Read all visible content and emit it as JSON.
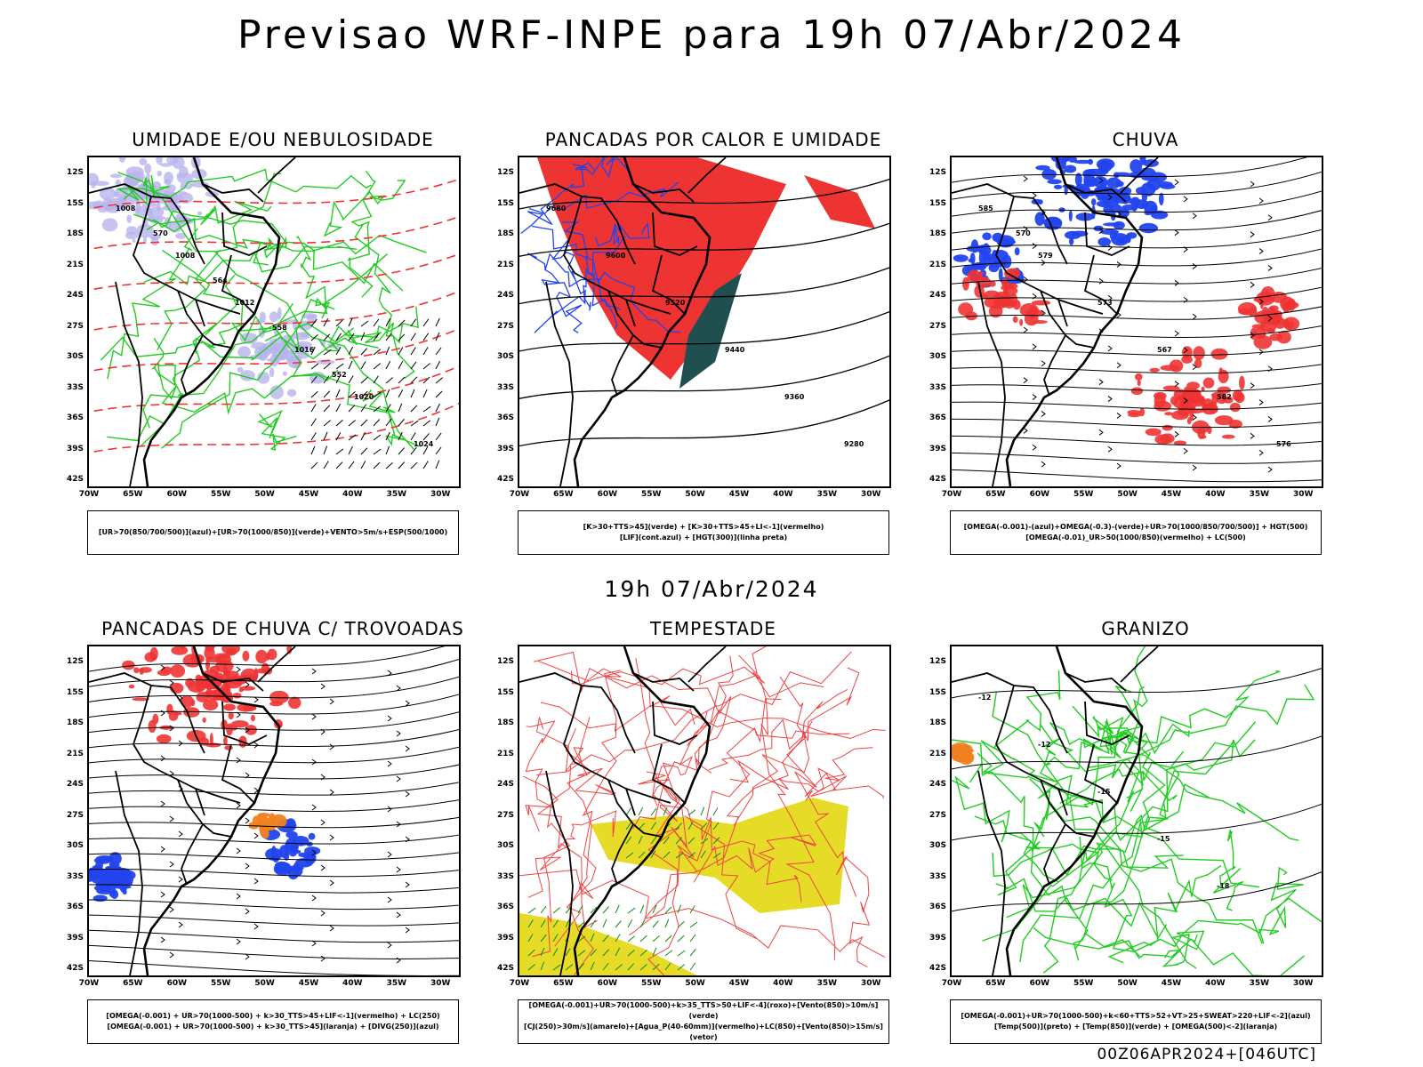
{
  "main_title": "Previsao WRF-INPE  para 19h 07/Abr/2024",
  "subtitle": "19h 07/Abr/2024",
  "footer": "00Z06APR2024+[046UTC]",
  "lat_labels": [
    "12S",
    "15S",
    "18S",
    "21S",
    "24S",
    "27S",
    "30S",
    "33S",
    "36S",
    "39S",
    "42S"
  ],
  "lon_labels": [
    "70W",
    "65W",
    "60W",
    "55W",
    "50W",
    "45W",
    "40W",
    "35W",
    "30W"
  ],
  "colors": {
    "green": "#22cc22",
    "blue": "#2244ee",
    "red": "#ee3333",
    "lavender": "#b8b4ee",
    "teal": "#1f4f4f",
    "yellow": "#e6dc28",
    "orange": "#f08020"
  },
  "panels": [
    {
      "title": "UMIDADE E/OU NEBULOSIDADE",
      "legend_line1": "[UR>70(850/700/500)](azul)+[UR>70(1000/850)](verde)+VENTO>5m/s+ESP(500/1000)",
      "legend_line2": "",
      "contour_labels": [
        "1008",
        "1008",
        "1012",
        "1016",
        "1020",
        "1024",
        "570",
        "564",
        "558",
        "552"
      ]
    },
    {
      "title": "PANCADAS POR CALOR E UMIDADE",
      "legend_line1": "[K>30+TTS>45](verde) + [K>30+TTS>45+LI<-1](vermelho)",
      "legend_line2": "[LIF](cont.azul) + [HGT(300)](linha preta)",
      "contour_labels": [
        "9680",
        "9600",
        "9520",
        "9440",
        "9360",
        "9280"
      ]
    },
    {
      "title": "CHUVA",
      "legend_line1": "[OMEGA(-0.001)-(azul)+OMEGA(-0.3)-(verde)+UR>70(1000/850/700/500)] + HGT(500)",
      "legend_line2": "[OMEGA(-0.01)_UR>50(1000/850)(vermelho) + LC(500)",
      "contour_labels": [
        "585",
        "579",
        "573",
        "567",
        "582",
        "576",
        "570"
      ]
    },
    {
      "title": "PANCADAS DE CHUVA C/ TROVOADAS",
      "legend_line1": "[OMEGA(-0.001) + UR>70(1000-500) + k>30_TTS>45+LIF<-1](vermelho) + LC(250)",
      "legend_line2": "[OMEGA(-0.001) + UR>70(1000-500) + k>30_TTS>45](laranja) + [DIVG(250)](azul)",
      "contour_labels": []
    },
    {
      "title": "TEMPESTADE",
      "legend_line1": "[OMEGA(-0.001)+UR>70(1000-500)+k>35_TTS>50+LIF<-4](roxo)+[Vento(850)>10m/s](verde)",
      "legend_line2": "[CJ(250)>30m/s](amarelo)+[Agua_P(40-60mm)](vermelho)+LC(850)+[Vento(850)>15m/s](vetor)",
      "contour_labels": []
    },
    {
      "title": "GRANIZO",
      "legend_line1": "[OMEGA(-0.001)+UR>70(1000-500)+k<60+TTS>52+VT>25+SWEAT>220+LIF<-2](azul)",
      "legend_line2": "[Temp(500)](preto) + [Temp(850)](verde) + [OMEGA(500)<-2](laranja)",
      "contour_labels": [
        "-12",
        "-12",
        "-15",
        "-15",
        "-18"
      ]
    }
  ]
}
